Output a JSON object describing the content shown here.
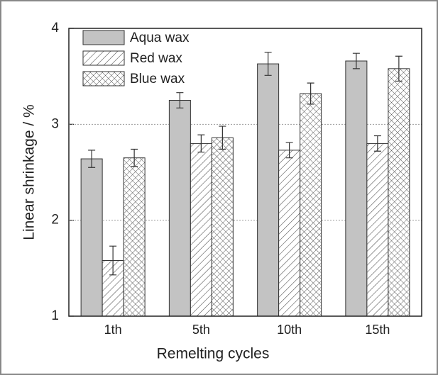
{
  "chart_data": {
    "type": "bar",
    "x_label": "Remelting cycles",
    "y_label": "Linear shrinkage / %",
    "categories": [
      "1th",
      "5th",
      "10th",
      "15th"
    ],
    "series": [
      {
        "name": "Aqua wax",
        "color": "#c3c3c3",
        "pattern": "solid",
        "values": [
          2.64,
          3.25,
          3.63,
          3.66
        ],
        "errors": [
          0.09,
          0.08,
          0.12,
          0.08
        ]
      },
      {
        "name": "Red wax",
        "color": "#ffffff",
        "pattern": "hatch",
        "values": [
          1.58,
          2.8,
          2.73,
          2.8
        ],
        "errors": [
          0.15,
          0.09,
          0.08,
          0.08
        ]
      },
      {
        "name": "Blue wax",
        "color": "#ffffff",
        "pattern": "crosshatch",
        "values": [
          2.65,
          2.86,
          3.32,
          3.58
        ],
        "errors": [
          0.09,
          0.12,
          0.11,
          0.13
        ]
      }
    ],
    "ylim": [
      1,
      4
    ],
    "yticks": [
      1,
      2,
      3,
      4
    ],
    "grid": true,
    "legend": "upper left"
  }
}
